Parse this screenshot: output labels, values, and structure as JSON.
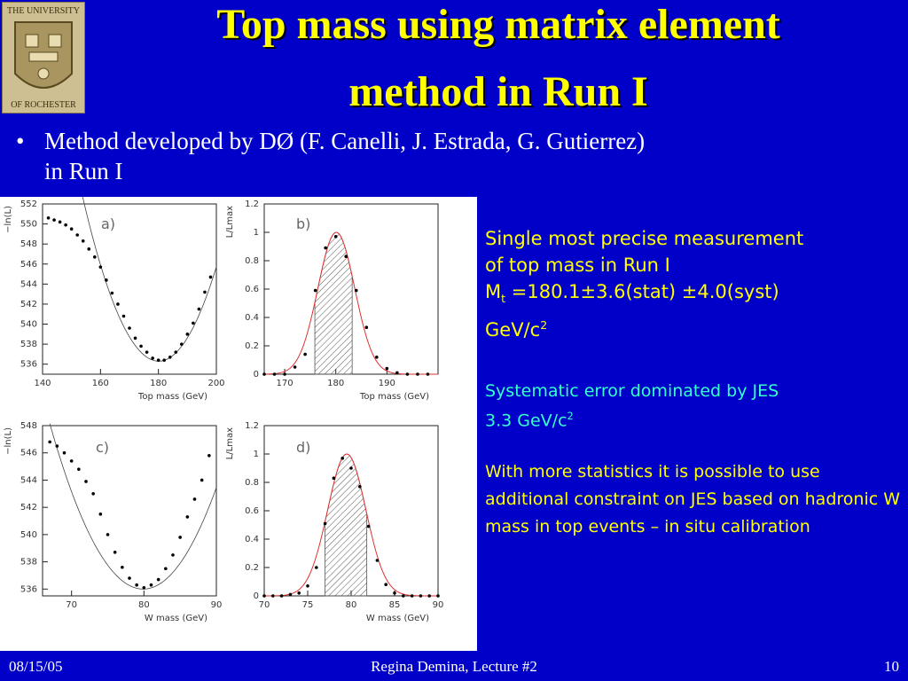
{
  "logo": {
    "top_text": "THE UNIVERSITY",
    "bottom_text": "OF ROCHESTER",
    "name": "university-seal"
  },
  "title_line1": "Top mass using matrix element",
  "title_line2": "method in Run I",
  "bullet_line1": "Method developed by DØ (F. Canelli, J. Estrada, G. Gutierrez)",
  "bullet_line2": "in Run I",
  "side": {
    "line1": "Single most precise measurement",
    "line2": "of top mass in Run I",
    "mass_sym": "M",
    "mass_sub": "t",
    "mass_val": " =180.1±3.6(stat) ±4.0(syst)",
    "unit_main": "GeV/c",
    "unit_sup": "2",
    "sys_line1": "Systematic error dominated by JES",
    "sys_line2_main": "3.3 GeV/c",
    "sys_line2_sup": "2",
    "stat_text": "With more statistics it is possible to use additional constraint on JES based on hadronic W mass in top events – in situ calibration"
  },
  "footer": {
    "date": "08/15/05",
    "center": "Regina Demina, Lecture #2",
    "page": "10"
  },
  "colors": {
    "background": "#0000c8",
    "title": "#ffff00",
    "highlight": "#ffff00",
    "note": "#33ffcc",
    "curve": "#e03030"
  },
  "chart_data": [
    {
      "type": "scatter",
      "panel": "a)",
      "xlabel": "Top mass (GeV)",
      "ylabel": "−ln(L)",
      "xlim": [
        140,
        200
      ],
      "ylim": [
        535,
        552
      ],
      "xticks": [
        140,
        160,
        180,
        200
      ],
      "yticks": [
        536,
        538,
        540,
        542,
        544,
        546,
        548,
        550,
        552
      ],
      "fit": {
        "type": "parabola",
        "x0": 180.1,
        "ymin": 536.3,
        "k": 0.0238,
        "from": 152,
        "to": 200
      },
      "x": [
        142,
        144,
        146,
        148,
        150,
        152,
        154,
        156,
        158,
        160,
        162,
        164,
        166,
        168,
        170,
        172,
        174,
        176,
        178,
        180,
        182,
        184,
        186,
        188,
        190,
        192,
        194,
        196,
        198
      ],
      "y": [
        550.6,
        550.4,
        550.2,
        549.9,
        549.5,
        548.9,
        548.3,
        547.5,
        546.7,
        545.7,
        544.4,
        543.1,
        542,
        540.8,
        539.6,
        538.6,
        537.8,
        537.2,
        536.6,
        536.4,
        536.4,
        536.7,
        537.2,
        538,
        539,
        540.1,
        541.5,
        543.2,
        544.7
      ]
    },
    {
      "type": "line",
      "panel": "b)",
      "xlabel": "Top mass (GeV)",
      "ylabel": "L/L_max",
      "xlim": [
        166,
        200
      ],
      "ylim": [
        0,
        1.2
      ],
      "xticks": [
        170,
        180,
        190
      ],
      "yticks": [
        0,
        0.2,
        0.4,
        0.6,
        0.8,
        1,
        1.2
      ],
      "gaussian": {
        "mean": 180.1,
        "sigma": 3.6,
        "shade": [
          175.9,
          183.2
        ]
      },
      "x": [
        166,
        168,
        170,
        172,
        174,
        176,
        178,
        180,
        182,
        184,
        186,
        188,
        190,
        192,
        194,
        196,
        198
      ],
      "y": [
        0,
        0,
        0,
        0.05,
        0.14,
        0.59,
        0.89,
        0.97,
        0.83,
        0.59,
        0.33,
        0.12,
        0.04,
        0.01,
        0,
        0,
        0
      ]
    },
    {
      "type": "scatter",
      "panel": "c)",
      "xlabel": "W mass (GeV)",
      "ylabel": "−ln(L)",
      "xlim": [
        66,
        90
      ],
      "ylim": [
        535.5,
        548
      ],
      "xticks": [
        70,
        80,
        90
      ],
      "yticks": [
        536,
        538,
        540,
        542,
        544,
        546,
        548
      ],
      "fit": {
        "type": "parabola",
        "x0": 79.9,
        "ymin": 536,
        "k": 0.073,
        "from": 67,
        "to": 90
      },
      "x": [
        67,
        68,
        69,
        70,
        71,
        72,
        73,
        74,
        75,
        76,
        77,
        78,
        79,
        80,
        81,
        82,
        83,
        84,
        85,
        86,
        87,
        88,
        89
      ],
      "y": [
        546.8,
        546.5,
        546,
        545.4,
        544.8,
        543.9,
        543,
        541.5,
        540,
        538.7,
        537.6,
        536.8,
        536.3,
        536.1,
        536.3,
        536.7,
        537.5,
        538.5,
        539.8,
        541.3,
        542.6,
        544,
        545.8
      ]
    },
    {
      "type": "line",
      "panel": "d)",
      "xlabel": "W mass (GeV)",
      "ylabel": "L/L_max",
      "xlim": [
        70,
        90
      ],
      "ylim": [
        0,
        1.2
      ],
      "xticks": [
        70,
        75,
        80,
        85,
        90
      ],
      "yticks": [
        0,
        0.2,
        0.4,
        0.6,
        0.8,
        1,
        1.2
      ],
      "gaussian": {
        "mean": 79.5,
        "sigma": 2.2,
        "shade": [
          77.0,
          81.8
        ]
      },
      "x": [
        70,
        71,
        72,
        73,
        74,
        75,
        76,
        77,
        78,
        79,
        80,
        81,
        82,
        83,
        84,
        85,
        86,
        87,
        88,
        89,
        90
      ],
      "y": [
        0,
        0,
        0,
        0.01,
        0.02,
        0.07,
        0.2,
        0.51,
        0.83,
        0.97,
        0.9,
        0.77,
        0.49,
        0.25,
        0.08,
        0.02,
        0,
        0,
        0,
        0,
        0
      ]
    }
  ]
}
